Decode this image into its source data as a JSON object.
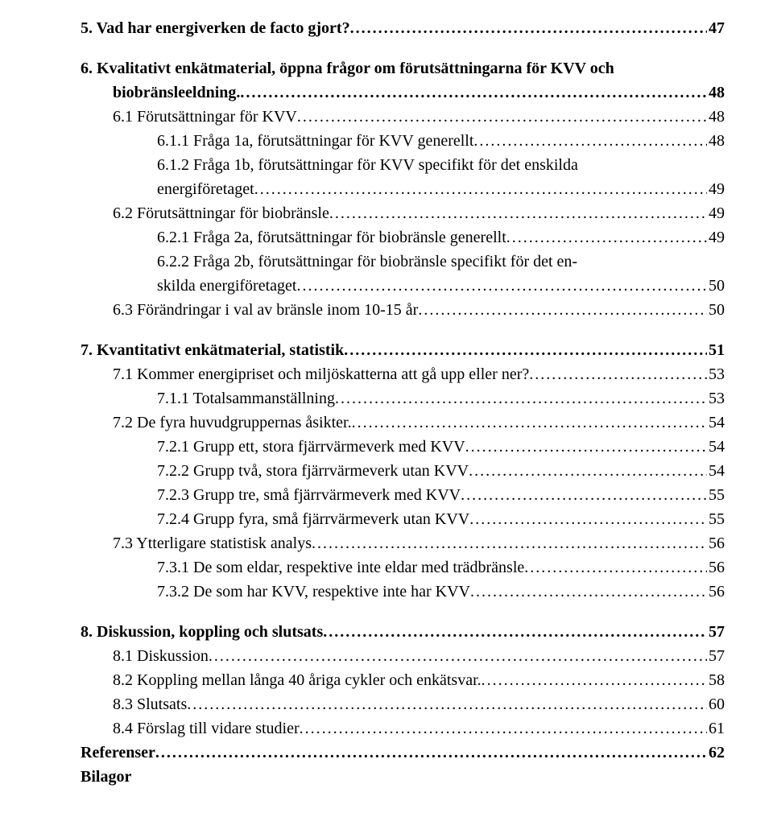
{
  "entries": [
    {
      "cls": "bold l1",
      "text": "5. Vad har energiverken de facto gjort?",
      "page": "47",
      "type": "row"
    },
    {
      "type": "spacer"
    },
    {
      "type": "wrap",
      "cls": "bold l1",
      "text_a": "6. Kvalitativt enkätmaterial, öppna frågor om förutsättningarna för KVV och",
      "text_b": "biobränsleeldning.",
      "page": "48"
    },
    {
      "cls": "l2",
      "text": "6.1 Förutsättningar för KVV",
      "page": "48",
      "type": "row"
    },
    {
      "cls": "l3",
      "text": "6.1.1 Fråga 1a, förutsättningar för KVV generellt",
      "page": "48",
      "type": "row"
    },
    {
      "type": "wrap-sub",
      "cls": "l3",
      "text_a": "6.1.2 Fråga 1b, förutsättningar för KVV specifikt för det enskilda",
      "text_b": "energiföretaget",
      "page": "49"
    },
    {
      "cls": "l2",
      "text": "6.2 Förutsättningar för biobränsle",
      "page": "49",
      "type": "row"
    },
    {
      "cls": "l3",
      "text": "6.2.1 Fråga 2a, förutsättningar för biobränsle generellt",
      "page": "49",
      "type": "row"
    },
    {
      "type": "wrap-sub",
      "cls": "l3",
      "text_a": "6.2.2 Fråga 2b, förutsättningar för biobränsle specifikt för det en-",
      "text_b": "skilda energiföretaget",
      "page": "50"
    },
    {
      "cls": "l2",
      "text": "6.3 Förändringar i val av bränsle inom 10-15 år",
      "page": "50",
      "type": "row"
    },
    {
      "type": "spacer"
    },
    {
      "cls": "bold l1",
      "text": "7. Kvantitativt enkätmaterial, statistik",
      "page": "51",
      "type": "row"
    },
    {
      "cls": "l2",
      "text": "7.1 Kommer energipriset och miljöskatterna att gå upp eller ner?",
      "page": "53",
      "type": "row"
    },
    {
      "cls": "l3",
      "text": "7.1.1 Totalsammanställning",
      "page": "53",
      "type": "row"
    },
    {
      "cls": "l2",
      "text": "7.2 De fyra huvudgruppernas åsikter.",
      "page": "54",
      "type": "row"
    },
    {
      "cls": "l3",
      "text": "7.2.1 Grupp ett, stora fjärrvärmeverk med KVV",
      "page": "54",
      "type": "row"
    },
    {
      "cls": "l3",
      "text": "7.2.2 Grupp två, stora fjärrvärmeverk utan KVV",
      "page": "54",
      "type": "row"
    },
    {
      "cls": "l3",
      "text": "7.2.3 Grupp tre, små fjärrvärmeverk med KVV",
      "page": "55",
      "type": "row"
    },
    {
      "cls": "l3",
      "text": "7.2.4 Grupp fyra, små fjärrvärmeverk utan KVV",
      "page": "55",
      "type": "row"
    },
    {
      "cls": "l2",
      "text": "7.3 Ytterligare statistisk analys",
      "page": "56",
      "type": "row"
    },
    {
      "cls": "l3",
      "text": "7.3.1 De som eldar, respektive inte eldar med trädbränsle",
      "page": "56",
      "type": "row"
    },
    {
      "cls": "l3",
      "text": "7.3.2 De som har KVV, respektive inte har KVV",
      "page": "56",
      "type": "row"
    },
    {
      "type": "spacer"
    },
    {
      "cls": "bold l1",
      "text": "8. Diskussion, koppling och slutsats",
      "page": "57",
      "type": "row"
    },
    {
      "cls": "l2",
      "text": "8.1 Diskussion",
      "page": "57",
      "type": "row"
    },
    {
      "cls": "l2",
      "text": "8.2 Koppling mellan långa 40 åriga cykler och enkätsvar.",
      "page": "58",
      "type": "row"
    },
    {
      "cls": "l2",
      "text": "8.3 Slutsats",
      "page": "60",
      "type": "row"
    },
    {
      "cls": "l2",
      "text": "8.4 Förslag till vidare studier",
      "page": "61",
      "type": "row"
    },
    {
      "cls": "bold l1",
      "text": "Referenser",
      "page": "62",
      "type": "row"
    },
    {
      "cls": "bold l1",
      "text": "Bilagor",
      "page": "",
      "type": "row-noleader"
    }
  ]
}
